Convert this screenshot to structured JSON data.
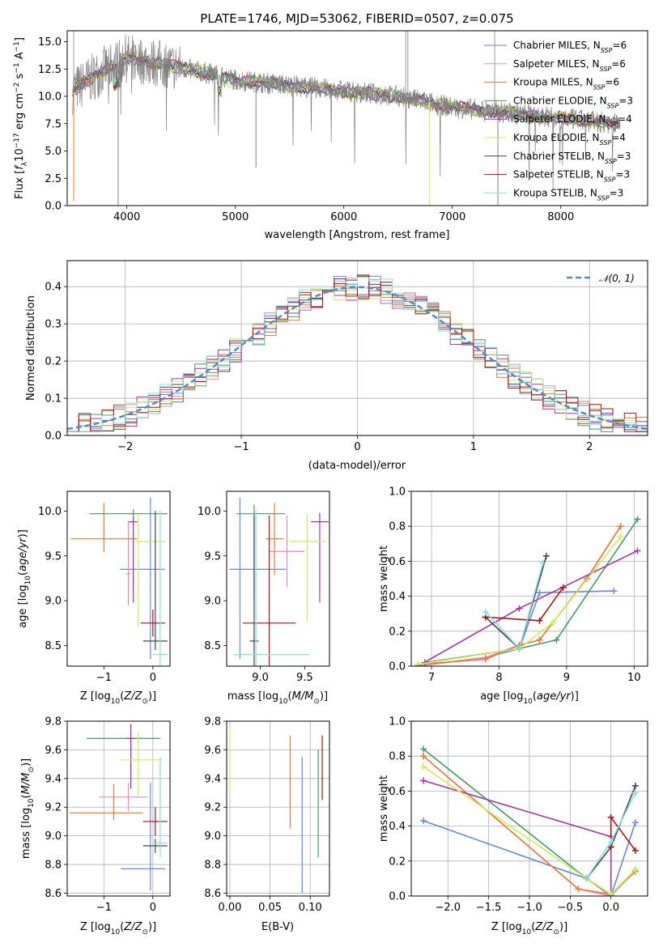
{
  "title": "PLATE=1746, MJD=53062, FIBERID=0507, z=0.075",
  "colors": [
    "#6688dd",
    "#ee88bb",
    "#ee7733",
    "#449966",
    "#aa33aa",
    "#ccee55",
    "#444444",
    "#aa1111",
    "#88dddd"
  ],
  "chart_data": [
    {
      "type": "line",
      "id": "spectrum",
      "xlabel": "wavelength [Angstrom, rest frame]",
      "ylabel": "Flux [f_λ10^-17 erg cm^-2 s^-1 A^-1]",
      "xlim": [
        3450,
        8800
      ],
      "ylim": [
        0,
        16
      ],
      "xticks": [
        4000,
        5000,
        6000,
        7000,
        8000
      ],
      "yticks": [
        0.0,
        2.5,
        5.0,
        7.5,
        10.0,
        12.5,
        15.0
      ],
      "x_range": [
        3500,
        8550
      ],
      "data_envelope": {
        "x": [
          3500,
          3800,
          4000,
          4300,
          4800,
          5000,
          5500,
          6000,
          6500,
          7000,
          7500,
          8000,
          8500
        ],
        "y": [
          10.5,
          12.5,
          13.5,
          13.0,
          12.0,
          11.5,
          11.0,
          10.5,
          10.0,
          9.0,
          8.5,
          8.0,
          7.5
        ]
      },
      "legend": [
        "Chabrier MILES, N_SSP=6",
        "Salpeter MILES, N_SSP=6",
        "Kroupa MILES, N_SSP=6",
        "Chabrier ELODIE, N_SSP=3",
        "Salpeter ELODIE, N_SSP=4",
        "Kroupa ELODIE, N_SSP=4",
        "Chabrier STELIB, N_SSP=3",
        "Salpeter STELIB, N_SSP=3",
        "Kroupa STELIB, N_SSP=3"
      ]
    },
    {
      "type": "histogram",
      "id": "residuals",
      "xlabel": "(data-model)/error",
      "ylabel": "Normed distribution",
      "xlim": [
        -2.5,
        2.5
      ],
      "ylim": [
        0,
        0.47
      ],
      "xticks": [
        -2,
        -1,
        0,
        1,
        2
      ],
      "yticks": [
        0.0,
        0.1,
        0.2,
        0.3,
        0.4
      ],
      "legend": "N(0, 1)",
      "gaussian": {
        "mu": 0,
        "sigma": 1
      }
    },
    {
      "type": "errorbar",
      "id": "age-vs-Z",
      "xlabel": "Z [log10(Z/Zsun)]",
      "ylabel": "age [log10(age/yr)]",
      "xlim": [
        -1.75,
        0.35
      ],
      "ylim": [
        8.27,
        10.22
      ],
      "xticks": [
        -1,
        0
      ],
      "yticks": [
        8.5,
        9.0,
        9.5,
        10.0
      ],
      "points": [
        {
          "x": -0.05,
          "xerr": [
            0.62,
            0.3
          ],
          "y": 9.35,
          "yerr": [
            1.0,
            0.8
          ]
        },
        {
          "x": -0.5,
          "xerr": [
            0.05,
            0.05
          ],
          "y": 9.3,
          "yerr": [
            0.35,
            0.58
          ]
        },
        {
          "x": -1.0,
          "xerr": [
            0.68,
            0.68
          ],
          "y": 9.69,
          "yerr": [
            0.15,
            0.4
          ]
        },
        {
          "x": -0.4,
          "xerr": [
            0.9,
            0.7
          ],
          "y": 9.97,
          "yerr": [
            0.9,
            0.05
          ]
        },
        {
          "x": -0.4,
          "xerr": [
            0.1,
            0.1
          ],
          "y": 9.88,
          "yerr": [
            0.9,
            0.05
          ]
        },
        {
          "x": -0.3,
          "xerr": [
            0.05,
            0.55
          ],
          "y": 9.66,
          "yerr": [
            0.95,
            0.3
          ]
        },
        {
          "x": 0.05,
          "xerr": [
            0.25,
            0.25
          ],
          "y": 8.55,
          "yerr": [
            0.1,
            1.45
          ]
        },
        {
          "x": 0.0,
          "xerr": [
            0.25,
            0.25
          ],
          "y": 8.75,
          "yerr": [
            0.15,
            0.15
          ]
        },
        {
          "x": 0.15,
          "xerr": [
            0.15,
            0.15
          ],
          "y": 8.4,
          "yerr": [
            0.4,
            1.6
          ]
        }
      ]
    },
    {
      "type": "errorbar",
      "id": "age-vs-mass",
      "xlabel": "mass [log10(M/Msun)]",
      "ylabel": "",
      "xlim": [
        8.62,
        9.78
      ],
      "ylim": [
        8.27,
        10.22
      ],
      "xticks": [
        9.0,
        9.5
      ],
      "yticks": [
        8.5,
        9.0,
        9.5,
        10.0
      ],
      "points": [
        {
          "x": 8.77,
          "xerr": [
            0.12,
            0.52
          ],
          "y": 9.35,
          "yerr": [
            1.0,
            0.8
          ]
        },
        {
          "x": 9.3,
          "xerr": [
            0.2,
            0.2
          ],
          "y": 9.55,
          "yerr": [
            0.4,
            0.4
          ]
        },
        {
          "x": 9.16,
          "xerr": [
            0.1,
            0.1
          ],
          "y": 9.69,
          "yerr": [
            0.4,
            0.4
          ]
        },
        {
          "x": 8.93,
          "xerr": [
            0.2,
            0.35
          ],
          "y": 9.97,
          "yerr": [
            0.95,
            0.1
          ]
        },
        {
          "x": 9.67,
          "xerr": [
            0.1,
            0.1
          ],
          "y": 9.88,
          "yerr": [
            0.9,
            0.1
          ]
        },
        {
          "x": 9.53,
          "xerr": [
            0.2,
            0.2
          ],
          "y": 9.66,
          "yerr": [
            0.9,
            0.3
          ]
        },
        {
          "x": 8.93,
          "xerr": [
            0.05,
            0.05
          ],
          "y": 8.55,
          "yerr": [
            1.4,
            1.4
          ]
        },
        {
          "x": 9.1,
          "xerr": [
            0.3,
            0.3
          ],
          "y": 8.75,
          "yerr": [
            1.2,
            1.2
          ]
        },
        {
          "x": 8.95,
          "xerr": [
            0.25,
            0.6
          ],
          "y": 8.4,
          "yerr": [
            1.6,
            1.6
          ]
        }
      ]
    },
    {
      "type": "line",
      "id": "massweight-vs-age",
      "xlabel": "age [log10(age/yr)]",
      "ylabel": "mass weight",
      "xlim": [
        6.7,
        10.2
      ],
      "ylim": [
        0.0,
        1.0
      ],
      "xticks": [
        7,
        8,
        9,
        10
      ],
      "yticks": [
        0.0,
        0.2,
        0.4,
        0.6,
        0.8,
        1.0
      ],
      "series": [
        {
          "x": [
            6.8,
            7.8,
            8.3,
            8.6,
            9.7
          ],
          "y": [
            0.0,
            0.05,
            0.1,
            0.42,
            0.43
          ]
        },
        {
          "x": [
            6.8,
            7.8,
            8.3,
            8.6,
            9.3,
            9.8
          ],
          "y": [
            0.0,
            0.05,
            0.12,
            0.15,
            0.5,
            0.8
          ]
        },
        {
          "x": [
            6.8,
            7.8,
            8.3,
            8.6,
            9.3,
            9.8
          ],
          "y": [
            0.01,
            0.04,
            0.12,
            0.15,
            0.5,
            0.8
          ]
        },
        {
          "x": [
            6.9,
            8.3,
            8.85,
            10.05
          ],
          "y": [
            0.02,
            0.1,
            0.15,
            0.84
          ]
        },
        {
          "x": [
            6.8,
            8.3,
            10.05
          ],
          "y": [
            0.0,
            0.33,
            0.66
          ]
        },
        {
          "x": [
            6.8,
            8.3,
            8.8,
            9.8
          ],
          "y": [
            0.01,
            0.1,
            0.25,
            0.74
          ]
        },
        {
          "x": [
            7.8,
            8.3,
            8.7
          ],
          "y": [
            0.28,
            0.1,
            0.63
          ]
        },
        {
          "x": [
            7.8,
            8.6,
            8.95
          ],
          "y": [
            0.28,
            0.26,
            0.45
          ]
        },
        {
          "x": [
            7.8,
            8.3,
            8.65
          ],
          "y": [
            0.31,
            0.1,
            0.59
          ]
        }
      ]
    },
    {
      "type": "errorbar",
      "id": "mass-vs-Z",
      "xlabel": "Z [log10(Z/Zsun)]",
      "ylabel": "mass [log10(M/Msun)]",
      "xlim": [
        -1.75,
        0.35
      ],
      "ylim": [
        8.58,
        9.8
      ],
      "xticks": [
        -1,
        0
      ],
      "yticks": [
        8.6,
        8.8,
        9.0,
        9.2,
        9.4,
        9.6,
        9.8
      ],
      "points": [
        {
          "x": -0.05,
          "xerr": [
            0.6,
            0.3
          ],
          "y": 8.77,
          "yerr": [
            0.15,
            0.6
          ]
        },
        {
          "x": -0.5,
          "xerr": [
            0.6,
            0.4
          ],
          "y": 9.27,
          "yerr": [
            0.1,
            0.1
          ]
        },
        {
          "x": -0.8,
          "xerr": [
            0.9,
            0.6
          ],
          "y": 9.16,
          "yerr": [
            0.05,
            0.2
          ]
        },
        {
          "x": -0.45,
          "xerr": [
            0.9,
            0.6
          ],
          "y": 9.68,
          "yerr": [
            0.35,
            0.1
          ]
        },
        {
          "x": -0.45,
          "xerr": [
            0.1,
            0.1
          ],
          "y": 9.68,
          "yerr": [
            0.35,
            0.1
          ]
        },
        {
          "x": -0.3,
          "xerr": [
            0.35,
            0.5
          ],
          "y": 9.53,
          "yerr": [
            0.25,
            0.2
          ]
        },
        {
          "x": 0.05,
          "xerr": [
            0.25,
            0.25
          ],
          "y": 8.93,
          "yerr": [
            0.05,
            0.05
          ]
        },
        {
          "x": 0.05,
          "xerr": [
            0.25,
            0.25
          ],
          "y": 9.1,
          "yerr": [
            0.1,
            0.1
          ]
        },
        {
          "x": 0.15,
          "xerr": [
            0.15,
            0.15
          ],
          "y": 8.95,
          "yerr": [
            0.1,
            0.6
          ]
        }
      ]
    },
    {
      "type": "errorbar",
      "id": "mass-vs-ebv",
      "xlabel": "E(B-V)",
      "ylabel": "",
      "xlim": [
        -0.004,
        0.124
      ],
      "ylim": [
        8.58,
        9.8
      ],
      "xticks": [
        0.0,
        0.05,
        0.1
      ],
      "yticks": [
        8.6,
        8.8,
        9.0,
        9.2,
        9.4,
        9.6,
        9.8
      ],
      "points": [
        {
          "x": 0.0,
          "y": 9.5,
          "yerr": [
            0.2,
            0.25
          ]
        },
        {
          "x": 0.075,
          "y": 9.35,
          "yerr": [
            0.3,
            0.35
          ]
        },
        {
          "x": 0.09,
          "y": 9.1,
          "yerr": [
            0.5,
            0.45
          ]
        },
        {
          "x": 0.115,
          "y": 9.55,
          "yerr": [
            0.3,
            0.15
          ]
        },
        {
          "x": 0.11,
          "y": 9.2,
          "yerr": [
            0.35,
            0.4
          ]
        }
      ]
    },
    {
      "type": "line",
      "id": "massweight-vs-Z",
      "xlabel": "Z [log10(Z/Zsun)]",
      "ylabel": "mass weight",
      "xlim": [
        -2.45,
        0.45
      ],
      "ylim": [
        0.0,
        1.0
      ],
      "xticks": [
        -2.0,
        -1.5,
        -1.0,
        -0.5,
        0.0
      ],
      "yticks": [
        0.0,
        0.2,
        0.4,
        0.6,
        0.8,
        1.0
      ],
      "series": [
        {
          "x": [
            -2.3,
            -0.3,
            0.0,
            0.3
          ],
          "y": [
            0.43,
            0.1,
            0.0,
            0.42
          ]
        },
        {
          "x": [
            -2.3,
            -0.4,
            0.0,
            0.3
          ],
          "y": [
            0.8,
            0.04,
            0.0,
            0.15
          ]
        },
        {
          "x": [
            -2.3,
            -0.4,
            0.0,
            0.3
          ],
          "y": [
            0.8,
            0.04,
            0.01,
            0.14
          ]
        },
        {
          "x": [
            -2.3,
            -0.3,
            0.0,
            0.3
          ],
          "y": [
            0.84,
            0.1,
            0.01,
            0.15
          ]
        },
        {
          "x": [
            -2.3,
            0.0,
            0.0
          ],
          "y": [
            0.66,
            0.34,
            0.0
          ]
        },
        {
          "x": [
            -2.3,
            -0.3,
            0.0,
            0.3
          ],
          "y": [
            0.74,
            0.1,
            0.01,
            0.15
          ]
        },
        {
          "x": [
            -0.3,
            0.0,
            0.3
          ],
          "y": [
            0.1,
            0.28,
            0.63
          ]
        },
        {
          "x": [
            0.0,
            0.0,
            0.3
          ],
          "y": [
            0.28,
            0.45,
            0.26
          ]
        },
        {
          "x": [
            -0.3,
            0.0,
            0.3
          ],
          "y": [
            0.1,
            0.31,
            0.59
          ]
        }
      ]
    }
  ]
}
